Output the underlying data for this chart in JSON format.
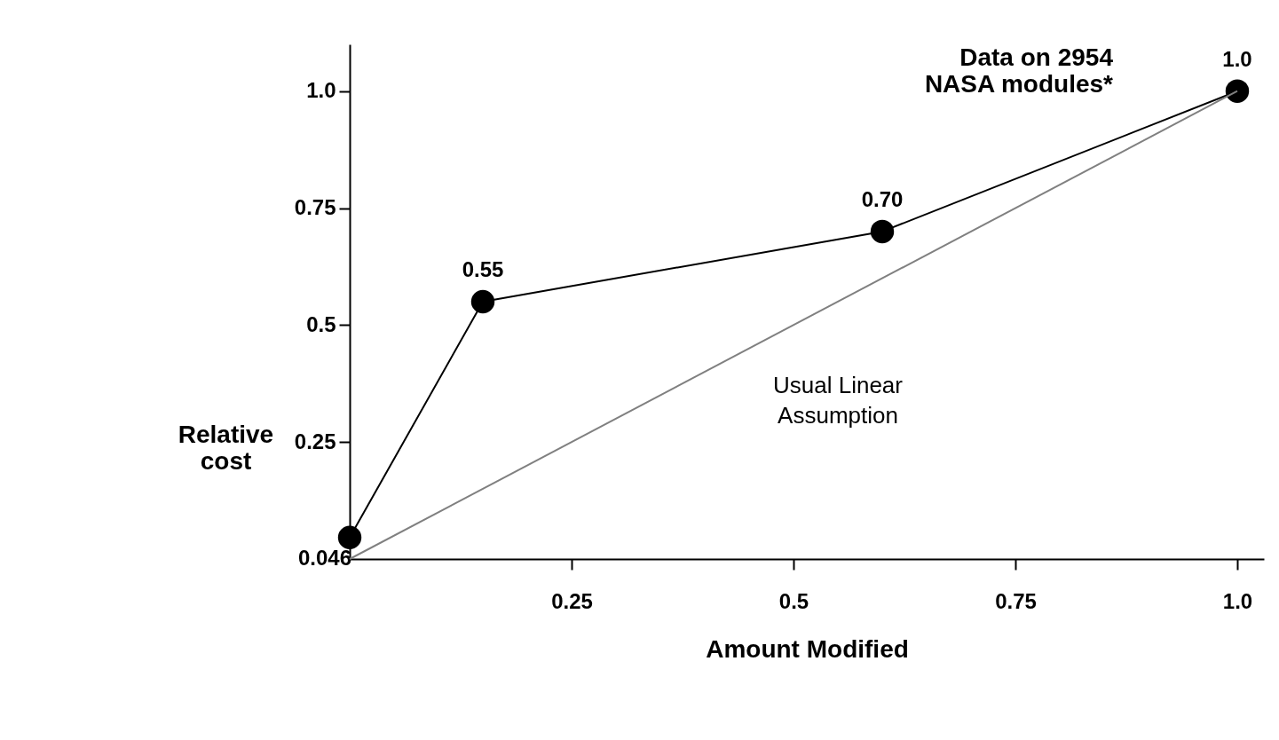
{
  "chart_data": {
    "type": "line",
    "title": "Data on 2954 NASA modules*",
    "xlabel": "Amount Modified",
    "ylabel": "Relative cost",
    "series": [
      {
        "color": "#000000",
        "marker": "circle",
        "x": [
          0,
          0.15,
          0.6,
          1.0
        ],
        "values": [
          0.046,
          0.55,
          0.7,
          1.0
        ],
        "value_labels": [
          "0.046",
          "0.55",
          "0.70",
          "1.0"
        ]
      },
      {
        "name": "Usual Linear Assumption",
        "color": "#808080",
        "marker": "none",
        "x": [
          0,
          1.0
        ],
        "values": [
          0,
          1.0
        ]
      }
    ],
    "xlim": [
      0,
      1.03
    ],
    "ylim": [
      0,
      1.1
    ],
    "xticks": [
      0.25,
      0.5,
      0.75,
      {
        "value": 1.0,
        "label": "1.0"
      }
    ],
    "yticks": [
      0.25,
      0.5,
      0.75,
      {
        "value": 1.0,
        "label": "1.0"
      }
    ],
    "grid": false
  }
}
